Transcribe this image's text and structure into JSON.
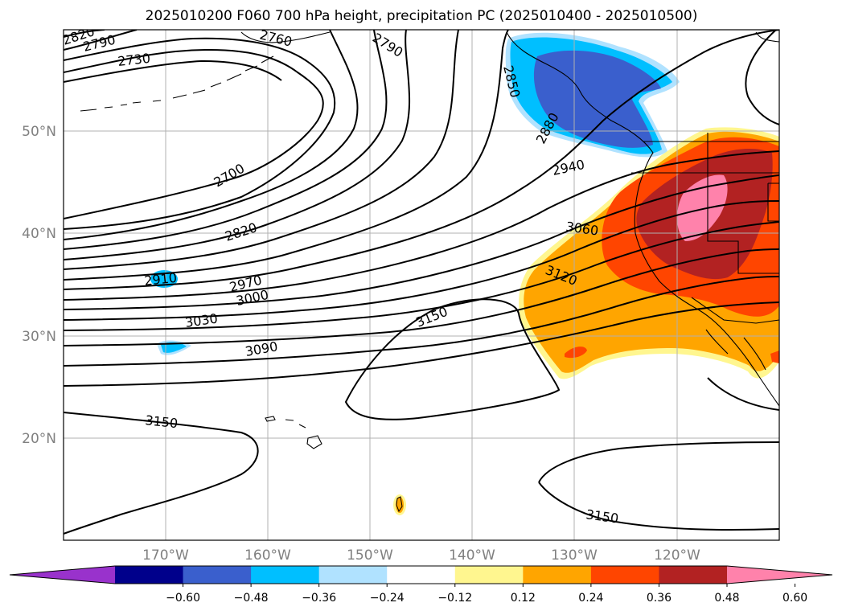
{
  "title": "2025010200 F060 700 hPa height, precipitation PC (2025010400 - 2025010500)",
  "map": {
    "lon_labels": [
      "170°W",
      "160°W",
      "150°W",
      "140°W",
      "130°W",
      "120°W"
    ],
    "lat_labels": [
      "50°N",
      "40°N",
      "30°N",
      "20°N"
    ],
    "lon_range": [
      -180,
      -110
    ],
    "lat_range": [
      10,
      60
    ]
  },
  "contour_labels": [
    {
      "id": "c2820a",
      "text": "2820"
    },
    {
      "id": "c2790a",
      "text": "2790"
    },
    {
      "id": "c2760",
      "text": "2760"
    },
    {
      "id": "c2790b",
      "text": "2790"
    },
    {
      "id": "c2730",
      "text": "2730"
    },
    {
      "id": "c2850",
      "text": "2850"
    },
    {
      "id": "c2880",
      "text": "2880"
    },
    {
      "id": "c2700",
      "text": "2700"
    },
    {
      "id": "c2940",
      "text": "2940"
    },
    {
      "id": "c2820b",
      "text": "2820"
    },
    {
      "id": "c3060",
      "text": "3060"
    },
    {
      "id": "c2910",
      "text": "2910"
    },
    {
      "id": "c3120",
      "text": "3120"
    },
    {
      "id": "c2970",
      "text": "2970"
    },
    {
      "id": "c3000",
      "text": "3000"
    },
    {
      "id": "c3150a",
      "text": "3150"
    },
    {
      "id": "c3030",
      "text": "3030"
    },
    {
      "id": "c3090",
      "text": "3090"
    },
    {
      "id": "c3150b",
      "text": "3150"
    },
    {
      "id": "c3150c",
      "text": "3150"
    }
  ],
  "colorbar": {
    "colors": [
      "#9932cc",
      "#00008b",
      "#3a5fcd",
      "#00bfff",
      "#b0e2ff",
      "#ffffff",
      "#fff68f",
      "#ffa500",
      "#ff4500",
      "#b22222",
      "#ff82ab"
    ],
    "tick_labels": [
      "−0.60",
      "−0.48",
      "−0.36",
      "−0.24",
      "−0.12",
      "0.12",
      "0.24",
      "0.36",
      "0.48",
      "0.60"
    ]
  }
}
